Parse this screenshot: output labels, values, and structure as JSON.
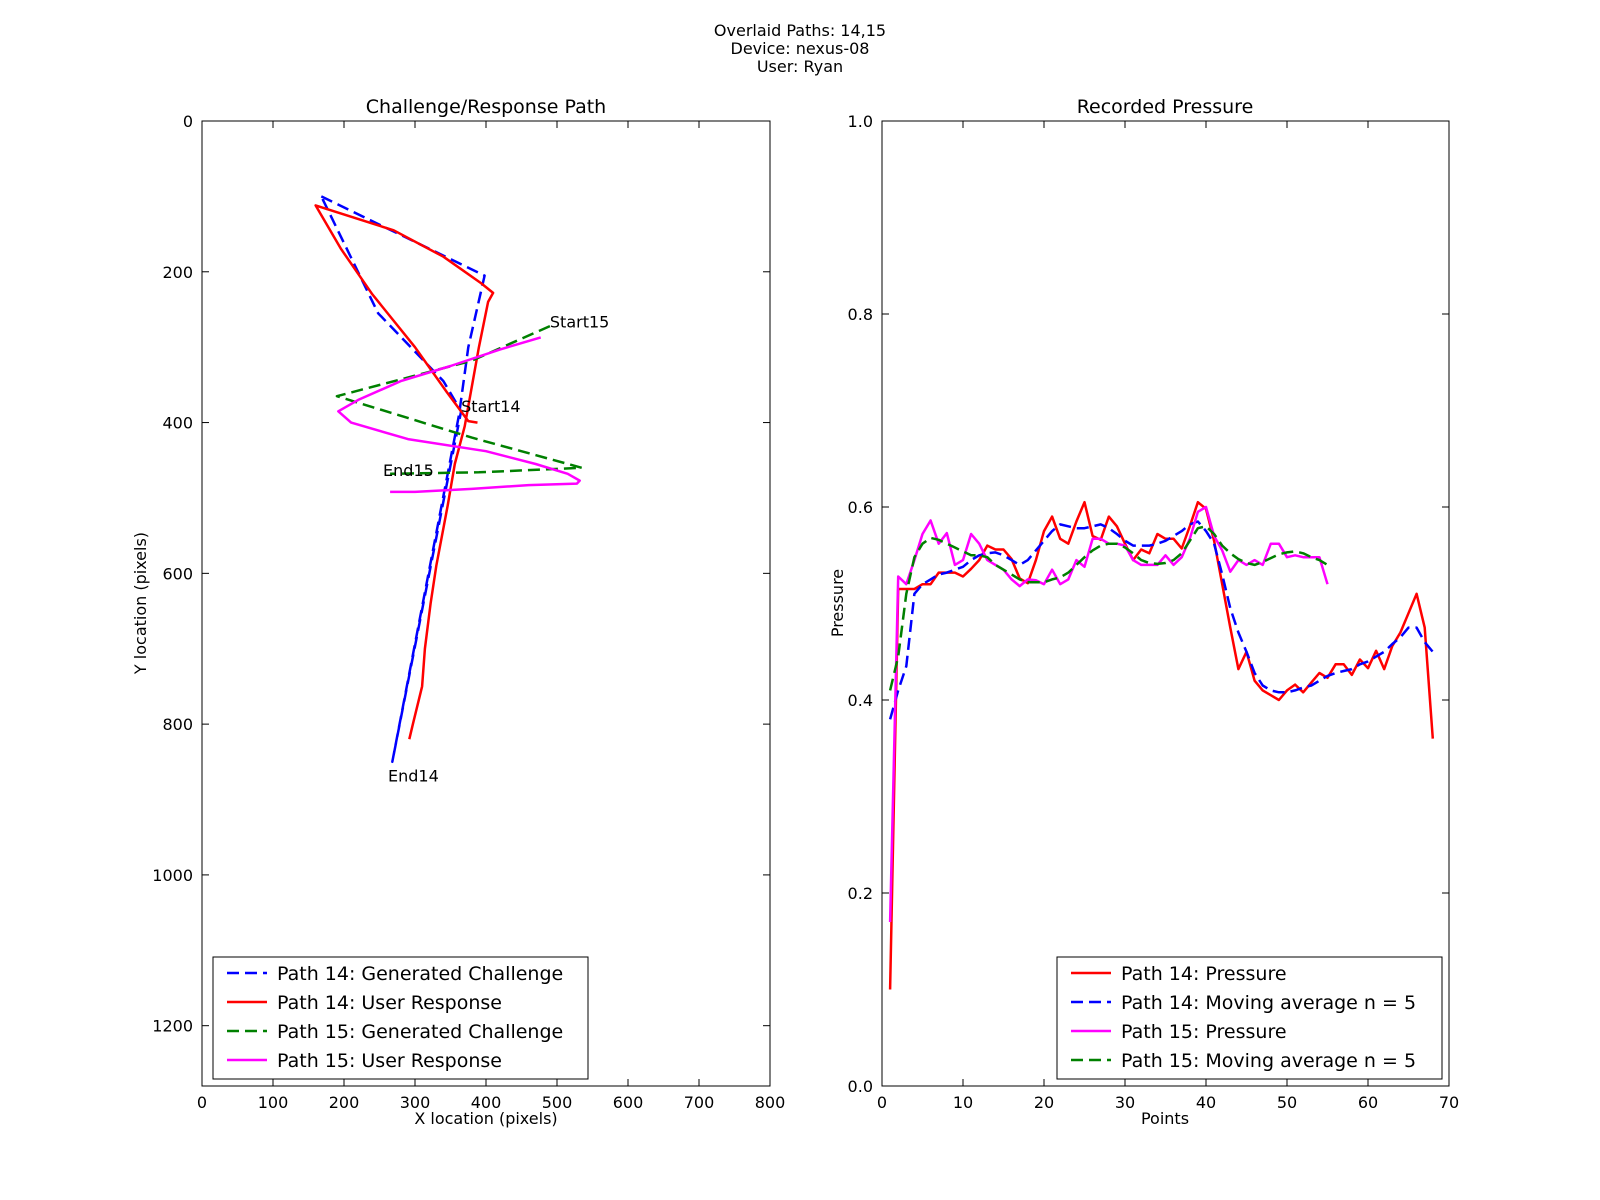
{
  "figure": {
    "suptitle_lines": [
      "Overlaid Paths: 14,15",
      "Device: nexus-08",
      "User: Ryan"
    ]
  },
  "chart_data": [
    {
      "type": "line",
      "title": "Challenge/Response Path",
      "xlabel": "X location (pixels)",
      "ylabel": "Y location (pixels)",
      "xlim": [
        0,
        800
      ],
      "ylim": [
        1280,
        0
      ],
      "y_inverted": true,
      "xticks": [
        0,
        100,
        200,
        300,
        400,
        500,
        600,
        700,
        800
      ],
      "yticks": [
        0,
        200,
        400,
        600,
        800,
        1000,
        1200
      ],
      "grid": false,
      "legend_position": "lower-left",
      "series": [
        {
          "name": "Path 14: Generated Challenge",
          "color": "#0000ff",
          "dash": "dashed",
          "points": [
            [
              168,
              100
            ],
            [
              398,
              205
            ],
            [
              375,
              300
            ],
            [
              362,
              390
            ],
            [
              268,
              850
            ],
            [
              365,
              385
            ],
            [
              340,
              345
            ],
            [
              248,
              255
            ],
            [
              168,
              100
            ]
          ]
        },
        {
          "name": "Path 14: User Response",
          "color": "#ff0000",
          "dash": "solid",
          "points": [
            [
              292,
              820
            ],
            [
              297,
              800
            ],
            [
              310,
              750
            ],
            [
              314,
              700
            ],
            [
              322,
              640
            ],
            [
              330,
              590
            ],
            [
              346,
              510
            ],
            [
              356,
              455
            ],
            [
              370,
              405
            ],
            [
              390,
              300
            ],
            [
              403,
              240
            ],
            [
              410,
              228
            ],
            [
              393,
              215
            ],
            [
              340,
              180
            ],
            [
              270,
              145
            ],
            [
              160,
              112
            ],
            [
              196,
              170
            ],
            [
              240,
              230
            ],
            [
              300,
              300
            ],
            [
              345,
              360
            ],
            [
              375,
              398
            ],
            [
              388,
              400
            ]
          ]
        },
        {
          "name": "Path 15: Generated Challenge",
          "color": "#008000",
          "dash": "dashed",
          "points": [
            [
              490,
              272
            ],
            [
              380,
              318
            ],
            [
              190,
              365
            ],
            [
              380,
              420
            ],
            [
              535,
              460
            ],
            [
              390,
              466
            ],
            [
              265,
              468
            ]
          ]
        },
        {
          "name": "Path 15: User Response",
          "color": "#ff00ff",
          "dash": "solid",
          "points": [
            [
              477,
              287
            ],
            [
              420,
              303
            ],
            [
              350,
              325
            ],
            [
              280,
              345
            ],
            [
              220,
              370
            ],
            [
              192,
              385
            ],
            [
              210,
              400
            ],
            [
              290,
              422
            ],
            [
              400,
              438
            ],
            [
              470,
              455
            ],
            [
              515,
              468
            ],
            [
              532,
              477
            ],
            [
              528,
              481
            ],
            [
              460,
              483
            ],
            [
              380,
              488
            ],
            [
              300,
              492
            ],
            [
              265,
              492
            ]
          ]
        }
      ],
      "annotations": [
        {
          "text": "Start15",
          "x": 490,
          "y": 266
        },
        {
          "text": "Start14",
          "x": 365,
          "y": 378
        },
        {
          "text": "End15",
          "x": 255,
          "y": 463
        },
        {
          "text": "End14",
          "x": 262,
          "y": 868
        }
      ]
    },
    {
      "type": "line",
      "title": "Recorded Pressure",
      "xlabel": "Points",
      "ylabel": "Pressure",
      "xlim": [
        0,
        70
      ],
      "ylim": [
        0.0,
        1.0
      ],
      "xticks": [
        0,
        10,
        20,
        30,
        40,
        50,
        60,
        70
      ],
      "yticks": [
        "0.0",
        "0.2",
        "0.4",
        "0.6",
        "0.8",
        "1.0"
      ],
      "grid": false,
      "legend_position": "lower-right",
      "series": [
        {
          "name": "Path 14: Pressure",
          "color": "#ff0000",
          "dash": "solid",
          "x_start": 1,
          "values": [
            0.1,
            0.515,
            0.515,
            0.515,
            0.52,
            0.52,
            0.532,
            0.532,
            0.532,
            0.528,
            0.536,
            0.545,
            0.56,
            0.556,
            0.556,
            0.546,
            0.526,
            0.521,
            0.545,
            0.575,
            0.59,
            0.567,
            0.562,
            0.585,
            0.605,
            0.57,
            0.566,
            0.59,
            0.58,
            0.562,
            0.545,
            0.556,
            0.552,
            0.572,
            0.567,
            0.567,
            0.557,
            0.58,
            0.605,
            0.598,
            0.565,
            0.52,
            0.475,
            0.432,
            0.45,
            0.42,
            0.41,
            0.405,
            0.4,
            0.41,
            0.416,
            0.408,
            0.418,
            0.428,
            0.423,
            0.437,
            0.437,
            0.426,
            0.442,
            0.433,
            0.451,
            0.432,
            0.456,
            0.47,
            0.49,
            0.51,
            0.475,
            0.36
          ]
        },
        {
          "name": "Path 14: Moving average n = 5",
          "color": "#0000ff",
          "dash": "dashed",
          "x_start": 1,
          "values": [
            0.38,
            0.41,
            0.435,
            0.51,
            0.52,
            0.525,
            0.53,
            0.532,
            0.535,
            0.538,
            0.545,
            0.55,
            0.552,
            0.553,
            0.55,
            0.545,
            0.54,
            0.545,
            0.555,
            0.565,
            0.575,
            0.582,
            0.58,
            0.578,
            0.578,
            0.58,
            0.582,
            0.578,
            0.572,
            0.565,
            0.56,
            0.56,
            0.56,
            0.562,
            0.565,
            0.57,
            0.575,
            0.582,
            0.585,
            0.575,
            0.562,
            0.53,
            0.495,
            0.47,
            0.45,
            0.428,
            0.415,
            0.41,
            0.408,
            0.408,
            0.41,
            0.413,
            0.415,
            0.42,
            0.425,
            0.428,
            0.43,
            0.432,
            0.437,
            0.44,
            0.445,
            0.45,
            0.458,
            0.465,
            0.475,
            0.475,
            0.46,
            0.45
          ]
        },
        {
          "name": "Path 15: Pressure",
          "color": "#ff00ff",
          "dash": "solid",
          "x_start": 1,
          "values": [
            0.17,
            0.528,
            0.52,
            0.545,
            0.572,
            0.586,
            0.562,
            0.573,
            0.54,
            0.545,
            0.572,
            0.562,
            0.545,
            0.54,
            0.535,
            0.525,
            0.518,
            0.525,
            0.524,
            0.52,
            0.535,
            0.52,
            0.525,
            0.545,
            0.538,
            0.567,
            0.567,
            0.562,
            0.562,
            0.56,
            0.545,
            0.54,
            0.54,
            0.54,
            0.55,
            0.54,
            0.548,
            0.567,
            0.595,
            0.6,
            0.57,
            0.555,
            0.533,
            0.545,
            0.54,
            0.545,
            0.54,
            0.562,
            0.562,
            0.548,
            0.55,
            0.548,
            0.548,
            0.548,
            0.52
          ]
        },
        {
          "name": "Path 15: Moving average n = 5",
          "color": "#008000",
          "dash": "dashed",
          "x_start": 1,
          "values": [
            0.41,
            0.445,
            0.51,
            0.548,
            0.562,
            0.568,
            0.566,
            0.562,
            0.558,
            0.554,
            0.55,
            0.55,
            0.548,
            0.54,
            0.535,
            0.53,
            0.525,
            0.522,
            0.522,
            0.522,
            0.525,
            0.527,
            0.532,
            0.54,
            0.548,
            0.555,
            0.56,
            0.562,
            0.562,
            0.558,
            0.552,
            0.545,
            0.542,
            0.541,
            0.542,
            0.545,
            0.552,
            0.565,
            0.578,
            0.58,
            0.572,
            0.56,
            0.552,
            0.546,
            0.542,
            0.54,
            0.543,
            0.547,
            0.551,
            0.553,
            0.554,
            0.552,
            0.548,
            0.545,
            0.54
          ]
        }
      ]
    }
  ]
}
